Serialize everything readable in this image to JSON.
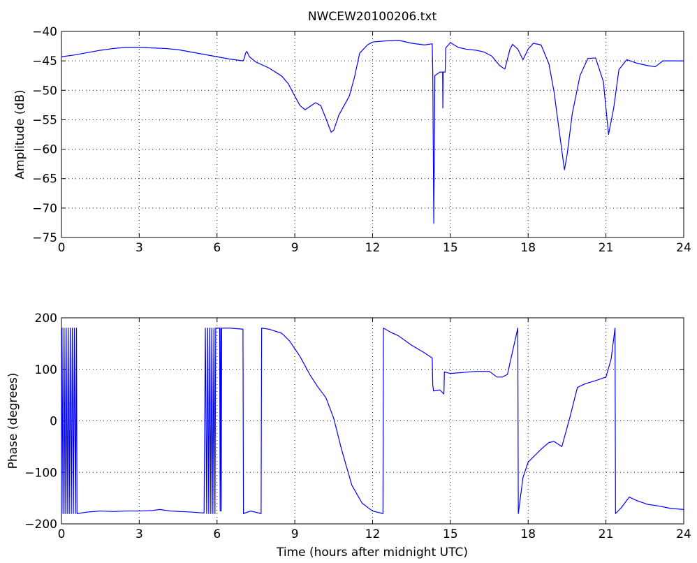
{
  "figure": {
    "title": "NWCEW20100206.txt",
    "background": "#ffffff",
    "line_color": "#0000ff"
  },
  "chart_data": [
    {
      "type": "line",
      "title": "NWCEW20100206.txt",
      "xlabel": "",
      "ylabel": "Amplitude (dB)",
      "xlim": [
        0,
        24
      ],
      "ylim": [
        -75,
        -40
      ],
      "xticks": [
        0,
        3,
        6,
        9,
        12,
        15,
        18,
        21,
        24
      ],
      "xtick_labels": [
        "0",
        "3",
        "6",
        "9",
        "12",
        "15",
        "18",
        "21",
        "24"
      ],
      "yticks": [
        -75,
        -70,
        -65,
        -60,
        -55,
        -50,
        -45,
        -40
      ],
      "ytick_labels": [
        "−75",
        "−70",
        "−65",
        "−60",
        "−55",
        "−50",
        "−45",
        "−40"
      ],
      "grid": true,
      "series": [
        {
          "color": "#0000ff",
          "points": [
            [
              0,
              -44.3
            ],
            [
              0.5,
              -44.0
            ],
            [
              1,
              -43.6
            ],
            [
              1.5,
              -43.2
            ],
            [
              2,
              -42.9
            ],
            [
              2.5,
              -42.7
            ],
            [
              3,
              -42.7
            ],
            [
              3.5,
              -42.8
            ],
            [
              4,
              -42.9
            ],
            [
              4.5,
              -43.1
            ],
            [
              5,
              -43.5
            ],
            [
              5.5,
              -43.9
            ],
            [
              6,
              -44.3
            ],
            [
              6.5,
              -44.7
            ],
            [
              7,
              -45.0
            ],
            [
              7.05,
              -44.6
            ],
            [
              7.1,
              -43.7
            ],
            [
              7.15,
              -43.4
            ],
            [
              7.25,
              -44.3
            ],
            [
              7.5,
              -45.2
            ],
            [
              8,
              -46.2
            ],
            [
              8.5,
              -47.6
            ],
            [
              8.75,
              -48.9
            ],
            [
              9,
              -51.0
            ],
            [
              9.2,
              -52.6
            ],
            [
              9.4,
              -53.3
            ],
            [
              9.6,
              -52.7
            ],
            [
              9.8,
              -52.1
            ],
            [
              10,
              -52.6
            ],
            [
              10.2,
              -54.8
            ],
            [
              10.4,
              -57.1
            ],
            [
              10.5,
              -56.8
            ],
            [
              10.7,
              -54.2
            ],
            [
              10.9,
              -52.6
            ],
            [
              11.1,
              -51.0
            ],
            [
              11.3,
              -47.8
            ],
            [
              11.5,
              -43.7
            ],
            [
              11.8,
              -42.3
            ],
            [
              12,
              -41.8
            ],
            [
              12.5,
              -41.6
            ],
            [
              13,
              -41.5
            ],
            [
              13.5,
              -42.0
            ],
            [
              14,
              -42.3
            ],
            [
              14.3,
              -42.1
            ],
            [
              14.32,
              -47.0
            ],
            [
              14.34,
              -60.0
            ],
            [
              14.36,
              -72.6
            ],
            [
              14.38,
              -62.0
            ],
            [
              14.4,
              -47.5
            ],
            [
              14.6,
              -46.9
            ],
            [
              14.7,
              -46.9
            ],
            [
              14.71,
              -53.0
            ],
            [
              14.72,
              -46.9
            ],
            [
              14.8,
              -46.9
            ],
            [
              14.82,
              -42.8
            ],
            [
              15,
              -41.9
            ],
            [
              15.3,
              -42.7
            ],
            [
              15.6,
              -43.0
            ],
            [
              16,
              -43.2
            ],
            [
              16.3,
              -43.5
            ],
            [
              16.6,
              -44.2
            ],
            [
              16.9,
              -45.8
            ],
            [
              17.1,
              -46.4
            ],
            [
              17.3,
              -43.0
            ],
            [
              17.4,
              -42.2
            ],
            [
              17.6,
              -43.0
            ],
            [
              17.8,
              -44.8
            ],
            [
              18,
              -43.0
            ],
            [
              18.2,
              -42.0
            ],
            [
              18.5,
              -42.3
            ],
            [
              18.8,
              -45.5
            ],
            [
              19,
              -50.3
            ],
            [
              19.2,
              -57.0
            ],
            [
              19.4,
              -63.5
            ],
            [
              19.5,
              -61.0
            ],
            [
              19.7,
              -54.0
            ],
            [
              20,
              -47.5
            ],
            [
              20.3,
              -44.6
            ],
            [
              20.6,
              -44.5
            ],
            [
              20.9,
              -48.5
            ],
            [
              21.1,
              -57.5
            ],
            [
              21.3,
              -53.0
            ],
            [
              21.5,
              -46.5
            ],
            [
              21.8,
              -44.8
            ],
            [
              22.2,
              -45.4
            ],
            [
              22.6,
              -45.8
            ],
            [
              22.9,
              -46.0
            ],
            [
              23.2,
              -45.0
            ],
            [
              23.6,
              -45.0
            ],
            [
              24,
              -45.0
            ]
          ]
        }
      ]
    },
    {
      "type": "line",
      "title": "",
      "xlabel": "Time (hours after midnight UTC)",
      "ylabel": "Phase (degrees)",
      "xlim": [
        0,
        24
      ],
      "ylim": [
        -200,
        200
      ],
      "xticks": [
        0,
        3,
        6,
        9,
        12,
        15,
        18,
        21,
        24
      ],
      "xtick_labels": [
        "0",
        "3",
        "6",
        "9",
        "12",
        "15",
        "18",
        "21",
        "24"
      ],
      "yticks": [
        -200,
        -100,
        0,
        100,
        200
      ],
      "ytick_labels": [
        "−200",
        "−100",
        "0",
        "100",
        "200"
      ],
      "grid": true,
      "series": [
        {
          "color": "#0000ff",
          "points": [
            [
              0,
              -180
            ],
            [
              0.02,
              180
            ],
            [
              0.06,
              -180
            ],
            [
              0.1,
              180
            ],
            [
              0.14,
              -180
            ],
            [
              0.18,
              180
            ],
            [
              0.22,
              -180
            ],
            [
              0.26,
              180
            ],
            [
              0.3,
              -180
            ],
            [
              0.34,
              180
            ],
            [
              0.38,
              -180
            ],
            [
              0.42,
              180
            ],
            [
              0.46,
              -180
            ],
            [
              0.5,
              180
            ],
            [
              0.54,
              -180
            ],
            [
              0.58,
              180
            ],
            [
              0.6,
              -180
            ],
            [
              1,
              -177
            ],
            [
              1.5,
              -175
            ],
            [
              2,
              -176
            ],
            [
              2.5,
              -175
            ],
            [
              3,
              -175
            ],
            [
              3.5,
              -174
            ],
            [
              3.8,
              -172
            ],
            [
              4.2,
              -175
            ],
            [
              4.6,
              -176
            ],
            [
              5,
              -177
            ],
            [
              5.5,
              -179
            ],
            [
              5.55,
              180
            ],
            [
              5.6,
              -180
            ],
            [
              5.64,
              180
            ],
            [
              5.68,
              -180
            ],
            [
              5.72,
              180
            ],
            [
              5.76,
              -180
            ],
            [
              5.8,
              180
            ],
            [
              5.84,
              -180
            ],
            [
              5.88,
              180
            ],
            [
              5.92,
              -180
            ],
            [
              5.95,
              180
            ],
            [
              6.1,
              180
            ],
            [
              6.12,
              -175
            ],
            [
              6.14,
              180
            ],
            [
              6.16,
              -175
            ],
            [
              6.18,
              180
            ],
            [
              6.5,
              180
            ],
            [
              7,
              178
            ],
            [
              7.02,
              -180
            ],
            [
              7.3,
              -175
            ],
            [
              7.7,
              -180
            ],
            [
              7.72,
              180
            ],
            [
              8,
              178
            ],
            [
              8.5,
              170
            ],
            [
              8.8,
              155
            ],
            [
              9.2,
              125
            ],
            [
              9.6,
              88
            ],
            [
              9.9,
              65
            ],
            [
              10.2,
              45
            ],
            [
              10.5,
              5
            ],
            [
              10.8,
              -55
            ],
            [
              11.2,
              -125
            ],
            [
              11.6,
              -160
            ],
            [
              12,
              -175
            ],
            [
              12.4,
              -180
            ],
            [
              12.42,
              180
            ],
            [
              12.7,
              172
            ],
            [
              13,
              165
            ],
            [
              13.5,
              147
            ],
            [
              14,
              132
            ],
            [
              14.3,
              122
            ],
            [
              14.32,
              70
            ],
            [
              14.35,
              58
            ],
            [
              14.6,
              60
            ],
            [
              14.75,
              52
            ],
            [
              14.77,
              95
            ],
            [
              15,
              92
            ],
            [
              15.5,
              94
            ],
            [
              16,
              96
            ],
            [
              16.5,
              96
            ],
            [
              16.8,
              85
            ],
            [
              17,
              85
            ],
            [
              17.2,
              90
            ],
            [
              17.4,
              135
            ],
            [
              17.6,
              180
            ],
            [
              17.62,
              -180
            ],
            [
              17.8,
              -110
            ],
            [
              18,
              -80
            ],
            [
              18.5,
              -55
            ],
            [
              18.8,
              -42
            ],
            [
              19,
              -40
            ],
            [
              19.3,
              -50
            ],
            [
              19.6,
              5
            ],
            [
              19.9,
              65
            ],
            [
              20.2,
              72
            ],
            [
              20.6,
              78
            ],
            [
              21,
              85
            ],
            [
              21.2,
              120
            ],
            [
              21.35,
              180
            ],
            [
              21.37,
              -180
            ],
            [
              21.6,
              -168
            ],
            [
              21.9,
              -148
            ],
            [
              22.2,
              -155
            ],
            [
              22.6,
              -162
            ],
            [
              23,
              -165
            ],
            [
              23.5,
              -170
            ],
            [
              24,
              -172
            ]
          ]
        }
      ]
    }
  ]
}
